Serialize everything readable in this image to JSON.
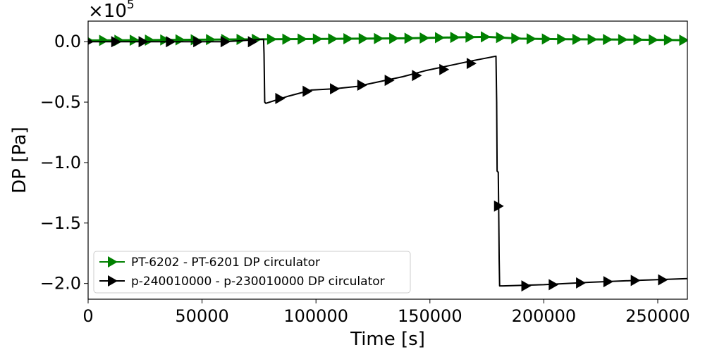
{
  "chart_data": {
    "type": "line",
    "xlabel": "Time [s]",
    "ylabel": "DP [Pa]",
    "y_multiplier": "×10",
    "y_multiplier_exp": "5",
    "xlim": [
      0,
      263000
    ],
    "ylim": [
      -2.13,
      0.17
    ],
    "x_ticks": [
      0,
      50000,
      100000,
      150000,
      200000,
      250000
    ],
    "x_tick_labels": [
      "0",
      "50000",
      "100000",
      "150000",
      "200000",
      "250000"
    ],
    "y_ticks": [
      0.0,
      -0.5,
      -1.0,
      -1.5,
      -2.0
    ],
    "y_tick_labels": [
      "0.0",
      "−0.5",
      "−1.0",
      "−1.5",
      "−2.0"
    ],
    "grid": false,
    "legend_position": "bottom-left",
    "series": [
      {
        "name": "PT-6202 - PT-6201 DP circulator",
        "color": "#008000",
        "marker": "triangle-right",
        "x": [
          0,
          20000,
          40000,
          60000,
          80000,
          100000,
          120000,
          140000,
          160000,
          175000,
          190000,
          210000,
          230000,
          250000,
          263000
        ],
        "y": [
          0.01,
          0.012,
          0.015,
          0.018,
          0.02,
          0.022,
          0.025,
          0.028,
          0.035,
          0.04,
          0.025,
          0.02,
          0.018,
          0.015,
          0.012
        ],
        "marker_x": [
          0,
          6700,
          13400,
          20100,
          26800,
          33500,
          40200,
          46900,
          53600,
          60300,
          67000,
          73700,
          80400,
          87100,
          93800,
          100500,
          107200,
          113900,
          120600,
          127300,
          134000,
          140700,
          147400,
          154100,
          160800,
          167500,
          174200,
          180900,
          187600,
          194300,
          201000,
          207700,
          214400,
          221100,
          227800,
          234500,
          241200,
          247900,
          254600,
          261300
        ]
      },
      {
        "name": "p-240010000 - p-230010000 DP circulator",
        "color": "#000000",
        "marker": "triangle-right",
        "x": [
          0,
          60000,
          77000,
          77200,
          77500,
          78000,
          88000,
          98000,
          108000,
          118000,
          128000,
          138000,
          148000,
          158000,
          168000,
          179000,
          179300,
          179500,
          180000,
          180200,
          180400,
          180600,
          182000,
          200000,
          220000,
          240000,
          263000
        ],
        "y": [
          0.0,
          0.0,
          0.02,
          -0.1,
          -0.5,
          -0.51,
          -0.45,
          -0.4,
          -0.39,
          -0.37,
          -0.33,
          -0.29,
          -0.24,
          -0.2,
          -0.16,
          -0.12,
          -0.5,
          -1.07,
          -1.08,
          -1.4,
          -1.8,
          -2.02,
          -2.02,
          -2.01,
          -1.99,
          -1.975,
          -1.96
        ],
        "marker_x": [
          0,
          12000,
          24000,
          36000,
          48000,
          60000,
          72000,
          84000,
          96000,
          108000,
          120000,
          132000,
          144000,
          156000,
          168000,
          180000,
          192000,
          204000,
          216000,
          228000,
          240000,
          252000
        ],
        "marker_y": [
          0.0,
          0.0,
          0.0,
          0.0,
          0.0,
          0.0,
          0.0,
          -0.47,
          -0.41,
          -0.39,
          -0.36,
          -0.32,
          -0.28,
          -0.23,
          -0.18,
          -1.36,
          -2.02,
          -2.01,
          -1.995,
          -1.985,
          -1.975,
          -1.97
        ]
      }
    ]
  }
}
